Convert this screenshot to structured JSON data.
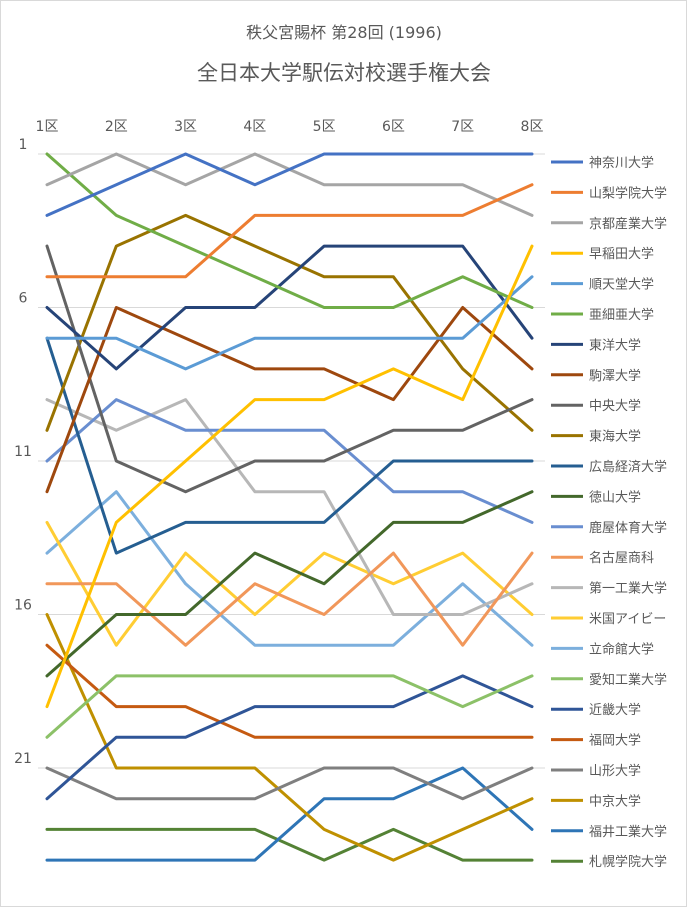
{
  "chart_data": {
    "type": "line",
    "title": "秩父宮賜杯 第28回 (1996)",
    "subtitle": "全日本大学駅伝対校選手権大会",
    "categories": [
      "1区",
      "2区",
      "3区",
      "4区",
      "5区",
      "6区",
      "7区",
      "8区"
    ],
    "y_ticks": [
      "1",
      "6",
      "11",
      "16",
      "21"
    ],
    "ylim": [
      1,
      24
    ],
    "y_reversed": true,
    "grid": true,
    "legend_position": "right",
    "series": [
      {
        "name": "神奈川大学",
        "color": "#4472C4",
        "values": [
          3,
          2,
          1,
          2,
          1,
          1,
          1,
          1
        ]
      },
      {
        "name": "山梨学院大学",
        "color": "#ED7D31",
        "values": [
          5,
          5,
          5,
          3,
          3,
          3,
          3,
          2
        ]
      },
      {
        "name": "京都産業大学",
        "color": "#A5A5A5",
        "values": [
          2,
          1,
          2,
          1,
          2,
          2,
          2,
          3
        ]
      },
      {
        "name": "早稲田大学",
        "color": "#FFC000",
        "values": [
          19,
          13,
          11,
          9,
          9,
          8,
          9,
          4
        ]
      },
      {
        "name": "順天堂大学",
        "color": "#5B9BD5",
        "values": [
          7,
          7,
          8,
          7,
          7,
          7,
          7,
          5
        ]
      },
      {
        "name": "亜細亜大学",
        "color": "#70AD47",
        "values": [
          1,
          3,
          4,
          5,
          6,
          6,
          5,
          6
        ]
      },
      {
        "name": "東洋大学",
        "color": "#264478",
        "values": [
          6,
          8,
          6,
          6,
          4,
          4,
          4,
          7
        ]
      },
      {
        "name": "駒澤大学",
        "color": "#9E480E",
        "values": [
          12,
          6,
          7,
          8,
          8,
          9,
          6,
          8
        ]
      },
      {
        "name": "中央大学",
        "color": "#636363",
        "values": [
          4,
          11,
          12,
          11,
          11,
          10,
          10,
          9
        ]
      },
      {
        "name": "東海大学",
        "color": "#997300",
        "values": [
          10,
          4,
          3,
          4,
          5,
          5,
          8,
          10
        ]
      },
      {
        "name": "広島経済大学",
        "color": "#255E91",
        "values": [
          7,
          14,
          13,
          13,
          13,
          11,
          11,
          11
        ]
      },
      {
        "name": "徳山大学",
        "color": "#43682B",
        "values": [
          18,
          16,
          16,
          14,
          15,
          13,
          13,
          12
        ]
      },
      {
        "name": "鹿屋体育大学",
        "color": "#698ED0",
        "values": [
          11,
          9,
          10,
          10,
          10,
          12,
          12,
          13
        ]
      },
      {
        "name": "名古屋商科",
        "color": "#F1975A",
        "values": [
          15,
          15,
          17,
          15,
          16,
          14,
          17,
          14
        ]
      },
      {
        "name": "第一工業大学",
        "color": "#B7B7B7",
        "values": [
          9,
          10,
          9,
          12,
          12,
          16,
          16,
          15
        ]
      },
      {
        "name": "米国アイビー",
        "color": "#FFCD33",
        "values": [
          13,
          17,
          14,
          16,
          14,
          15,
          14,
          16
        ]
      },
      {
        "name": "立命館大学",
        "color": "#7CAFDD",
        "values": [
          14,
          12,
          15,
          17,
          17,
          17,
          15,
          17
        ]
      },
      {
        "name": "愛知工業大学",
        "color": "#8CC168",
        "values": [
          20,
          18,
          18,
          18,
          18,
          18,
          19,
          18
        ]
      },
      {
        "name": "近畿大学",
        "color": "#2F5597",
        "values": [
          22,
          20,
          20,
          19,
          19,
          19,
          18,
          19
        ]
      },
      {
        "name": "福岡大学",
        "color": "#C55A11",
        "values": [
          17,
          19,
          19,
          20,
          20,
          20,
          20,
          20
        ]
      },
      {
        "name": "山形大学",
        "color": "#7F7F7F",
        "values": [
          21,
          22,
          22,
          22,
          21,
          21,
          22,
          21
        ]
      },
      {
        "name": "中京大学",
        "color": "#BF9000",
        "values": [
          16,
          21,
          21,
          21,
          23,
          24,
          23,
          22
        ]
      },
      {
        "name": "福井工業大学",
        "color": "#2E75B6",
        "values": [
          24,
          24,
          24,
          24,
          22,
          22,
          21,
          23
        ]
      },
      {
        "name": "札幌学院大学",
        "color": "#548235",
        "values": [
          23,
          23,
          23,
          23,
          24,
          23,
          24,
          24
        ]
      }
    ]
  }
}
